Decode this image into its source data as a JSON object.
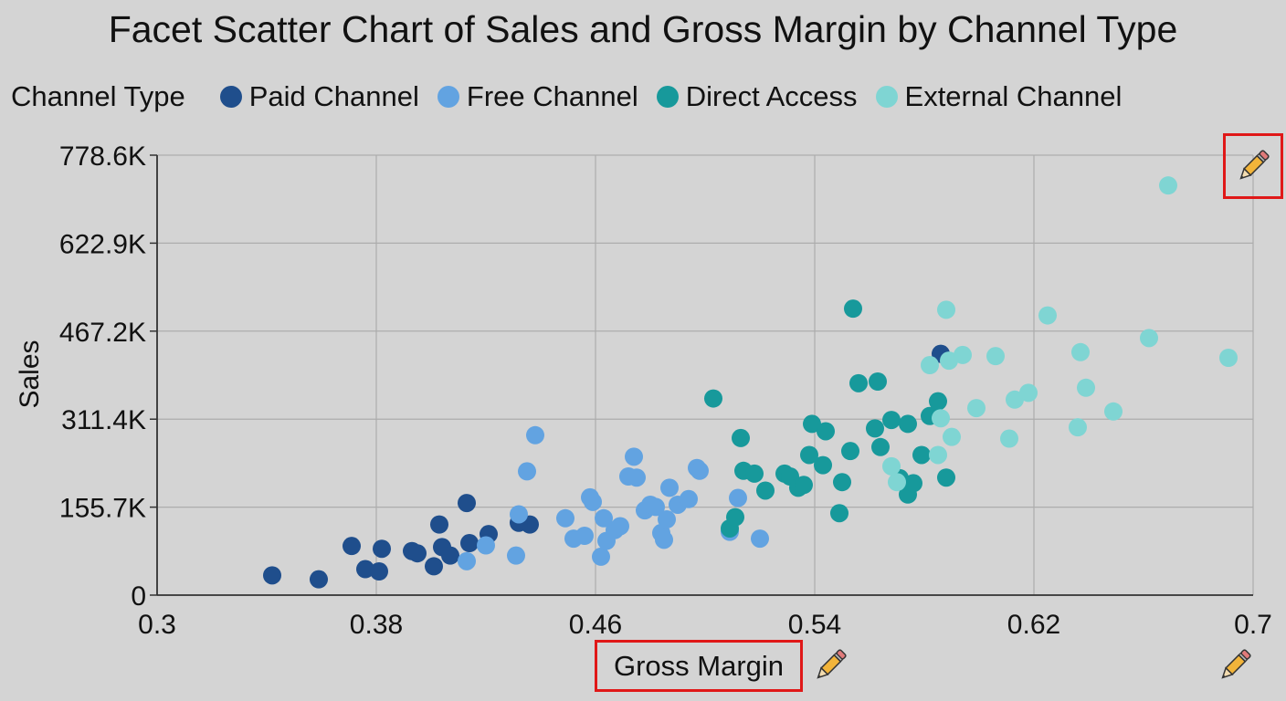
{
  "chart_data": {
    "type": "scatter",
    "title": "Facet Scatter Chart of Sales and Gross Margin by Channel Type",
    "xlabel": "Gross Margin",
    "ylabel": "Sales",
    "xlim": [
      0.3,
      0.7
    ],
    "ylim": [
      0,
      778600
    ],
    "x_ticks": [
      0.3,
      0.38,
      0.46,
      0.54,
      0.62,
      0.7
    ],
    "x_tick_labels": [
      "0.3",
      "0.38",
      "0.46",
      "0.54",
      "0.62",
      "0.7"
    ],
    "y_ticks": [
      0,
      155700,
      311400,
      467200,
      622900,
      778600
    ],
    "y_tick_labels": [
      "0",
      "155.7K",
      "311.4K",
      "467.2K",
      "622.9K",
      "778.6K"
    ],
    "grid": true,
    "legend_title": "Channel Type",
    "legend_position": "top-left",
    "series": [
      {
        "name": "Paid Channel",
        "color": "#1f4e8c",
        "points": [
          [
            0.342,
            35000
          ],
          [
            0.359,
            28000
          ],
          [
            0.371,
            87000
          ],
          [
            0.376,
            46000
          ],
          [
            0.381,
            42000
          ],
          [
            0.382,
            82000
          ],
          [
            0.393,
            78000
          ],
          [
            0.395,
            74000
          ],
          [
            0.401,
            51000
          ],
          [
            0.403,
            125000
          ],
          [
            0.404,
            85000
          ],
          [
            0.407,
            70000
          ],
          [
            0.413,
            163000
          ],
          [
            0.414,
            92000
          ],
          [
            0.421,
            108000
          ],
          [
            0.436,
            125000
          ],
          [
            0.432,
            128000
          ],
          [
            0.586,
            427000
          ]
        ]
      },
      {
        "name": "Free Channel",
        "color": "#62a3e1",
        "points": [
          [
            0.413,
            60000
          ],
          [
            0.42,
            88000
          ],
          [
            0.431,
            70000
          ],
          [
            0.432,
            143000
          ],
          [
            0.435,
            219000
          ],
          [
            0.438,
            283000
          ],
          [
            0.449,
            136000
          ],
          [
            0.452,
            100000
          ],
          [
            0.456,
            105000
          ],
          [
            0.458,
            173000
          ],
          [
            0.459,
            165000
          ],
          [
            0.462,
            68000
          ],
          [
            0.463,
            136000
          ],
          [
            0.464,
            96000
          ],
          [
            0.467,
            115000
          ],
          [
            0.469,
            122000
          ],
          [
            0.472,
            210000
          ],
          [
            0.474,
            245000
          ],
          [
            0.475,
            208000
          ],
          [
            0.478,
            150000
          ],
          [
            0.48,
            160000
          ],
          [
            0.482,
            156000
          ],
          [
            0.484,
            110000
          ],
          [
            0.485,
            98000
          ],
          [
            0.486,
            134000
          ],
          [
            0.487,
            190000
          ],
          [
            0.49,
            160000
          ],
          [
            0.494,
            170000
          ],
          [
            0.497,
            225000
          ],
          [
            0.498,
            220000
          ],
          [
            0.509,
            112000
          ],
          [
            0.512,
            172000
          ],
          [
            0.52,
            100000
          ]
        ]
      },
      {
        "name": "Direct Access",
        "color": "#17999b",
        "points": [
          [
            0.503,
            348000
          ],
          [
            0.509,
            118000
          ],
          [
            0.511,
            138000
          ],
          [
            0.513,
            278000
          ],
          [
            0.514,
            220000
          ],
          [
            0.518,
            215000
          ],
          [
            0.522,
            185000
          ],
          [
            0.529,
            215000
          ],
          [
            0.531,
            210000
          ],
          [
            0.534,
            190000
          ],
          [
            0.536,
            195000
          ],
          [
            0.538,
            248000
          ],
          [
            0.539,
            303000
          ],
          [
            0.543,
            230000
          ],
          [
            0.544,
            290000
          ],
          [
            0.549,
            145000
          ],
          [
            0.55,
            200000
          ],
          [
            0.553,
            255000
          ],
          [
            0.554,
            507000
          ],
          [
            0.556,
            375000
          ],
          [
            0.562,
            295000
          ],
          [
            0.563,
            378000
          ],
          [
            0.564,
            262000
          ],
          [
            0.568,
            310000
          ],
          [
            0.571,
            207000
          ],
          [
            0.574,
            178000
          ],
          [
            0.574,
            303000
          ],
          [
            0.576,
            198000
          ],
          [
            0.579,
            248000
          ],
          [
            0.582,
            317000
          ],
          [
            0.585,
            343000
          ],
          [
            0.588,
            208000
          ]
        ]
      },
      {
        "name": "External Channel",
        "color": "#7fd5d3",
        "points": [
          [
            0.57,
            200000
          ],
          [
            0.568,
            228000
          ],
          [
            0.582,
            407000
          ],
          [
            0.585,
            248000
          ],
          [
            0.586,
            313000
          ],
          [
            0.588,
            505000
          ],
          [
            0.589,
            415000
          ],
          [
            0.59,
            280000
          ],
          [
            0.594,
            425000
          ],
          [
            0.599,
            331000
          ],
          [
            0.606,
            423000
          ],
          [
            0.611,
            277000
          ],
          [
            0.613,
            346000
          ],
          [
            0.618,
            358000
          ],
          [
            0.625,
            495000
          ],
          [
            0.636,
            297000
          ],
          [
            0.637,
            430000
          ],
          [
            0.639,
            367000
          ],
          [
            0.649,
            325000
          ],
          [
            0.662,
            455000
          ],
          [
            0.669,
            725000
          ],
          [
            0.691,
            420000
          ]
        ]
      }
    ]
  },
  "icons": {
    "top_right": "pencil-icon",
    "x_label": "pencil-icon",
    "bottom_right": "pencil-icon"
  },
  "colors": {
    "background": "#d4d4d4",
    "highlight": "#e01818"
  }
}
